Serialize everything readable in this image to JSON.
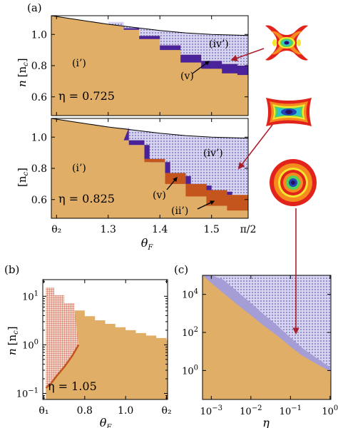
{
  "panel_labels": {
    "a": "(a)",
    "b": "(b)",
    "c": "(c)"
  },
  "colors": {
    "orange": "#E0AE67",
    "lavender_hatch": "#D6D4F1",
    "lavender_solid": "#A59DD5",
    "dark_purple": "#4A239A",
    "dark_orange": "#C4551D",
    "red_hatch": "#D2755F",
    "arrow": "#A9202C"
  },
  "chart_data": [
    {
      "id": "a-top",
      "type": "area",
      "ylabel": "n [n_c]",
      "ylabel_parts": {
        "var": "n",
        "unit": "[n",
        "unit_sub": "c",
        "close": "]"
      },
      "ytick_labels": [
        "0.6",
        "0.8",
        "1.0"
      ],
      "ytick_values": [
        0.6,
        0.8,
        1.0
      ],
      "ylim": [
        0.48,
        1.12
      ],
      "xlim": [
        1.19,
        1.5708
      ],
      "eta_label": "η = 0.725",
      "region_labels": [
        "(i’)",
        "(iv’)",
        "(v)"
      ],
      "upper_boundary": {
        "x": [
          1.19,
          1.25,
          1.3,
          1.35,
          1.4,
          1.45,
          1.5,
          1.55,
          1.5708
        ],
        "y": [
          1.12,
          1.09,
          1.065,
          1.045,
          1.025,
          1.01,
          1.0,
          0.995,
          0.993
        ]
      },
      "hatched_lower_boundary": {
        "x": [
          1.3,
          1.33,
          1.36,
          1.4,
          1.44,
          1.48,
          1.52,
          1.55,
          1.5708
        ],
        "y": [
          1.08,
          1.04,
          0.99,
          0.93,
          0.87,
          0.83,
          0.81,
          0.8,
          0.8
        ]
      },
      "purple_band_lower": {
        "x": [
          1.33,
          1.36,
          1.4,
          1.44,
          1.48,
          1.52,
          1.55,
          1.5708
        ],
        "y": [
          1.03,
          0.97,
          0.9,
          0.82,
          0.78,
          0.75,
          0.74,
          0.74
        ]
      }
    },
    {
      "id": "a-bottom",
      "type": "area",
      "ylabel": "n [n_c]",
      "ytick_labels": [
        "0.6",
        "0.8",
        "1.0"
      ],
      "ytick_values": [
        0.6,
        0.8,
        1.0
      ],
      "ylim": [
        0.48,
        1.12
      ],
      "xlim": [
        1.19,
        1.5708
      ],
      "xlabel": "θ_F",
      "xtick_labels": [
        "θ₂",
        "1.3",
        "1.4",
        "1.5",
        "π/2"
      ],
      "xtick_values": [
        1.2,
        1.3,
        1.4,
        1.5,
        1.5708
      ],
      "eta_label": "η = 0.825",
      "region_labels": [
        "(i’)",
        "(iv’)",
        "(v)",
        "(ii’)"
      ],
      "upper_boundary": {
        "x": [
          1.19,
          1.25,
          1.3,
          1.35,
          1.4,
          1.45,
          1.5,
          1.55,
          1.5708
        ],
        "y": [
          1.12,
          1.09,
          1.065,
          1.045,
          1.025,
          1.01,
          1.0,
          0.995,
          0.993
        ]
      },
      "hatched_lower_boundary": {
        "x": [
          1.3,
          1.34,
          1.38,
          1.42,
          1.46,
          1.5,
          1.54,
          1.5708
        ],
        "y": [
          1.06,
          0.95,
          0.84,
          0.75,
          0.69,
          0.65,
          0.63,
          0.63
        ]
      },
      "purple_band_lower": {
        "x": [
          1.33,
          1.37,
          1.41,
          1.45,
          1.49,
          1.53,
          1.5708
        ],
        "y": [
          0.98,
          0.86,
          0.77,
          0.7,
          0.66,
          0.63,
          0.62
        ]
      },
      "orange_band_lower": {
        "x": [
          1.37,
          1.41,
          1.45,
          1.49,
          1.53,
          1.5708
        ],
        "y": [
          0.84,
          0.7,
          0.62,
          0.56,
          0.53,
          0.52
        ]
      }
    },
    {
      "id": "b",
      "type": "area",
      "ylabel": "n [n_c]",
      "xlabel": "θ_F",
      "yscale": "log",
      "ytick_labels": [
        "10^-1",
        "10^0",
        "10^1"
      ],
      "ytick_display": [
        {
          "base": "10",
          "exp": "−1"
        },
        {
          "base": "10",
          "exp": "0"
        },
        {
          "base": "10",
          "exp": "1"
        }
      ],
      "ytick_values": [
        0.1,
        1,
        10
      ],
      "ylim": [
        0.075,
        22
      ],
      "xtick_labels": [
        "θ₁",
        "0.8",
        "1.0",
        "θ₂"
      ],
      "xtick_values": [
        0.6,
        0.8,
        1.0,
        1.2
      ],
      "xlim": [
        0.595,
        1.205
      ],
      "eta_label": "η = 1.05",
      "boundary": {
        "x": [
          0.61,
          0.65,
          0.7,
          0.75,
          0.8,
          0.85,
          0.9,
          0.95,
          1.0,
          1.05,
          1.1,
          1.15,
          1.2
        ],
        "y": [
          15,
          10.5,
          7.2,
          5.1,
          3.9,
          3.2,
          2.7,
          2.3,
          2.0,
          1.75,
          1.55,
          1.38,
          1.25
        ]
      },
      "red_lower_boundary": {
        "x": [
          0.61,
          0.63,
          0.66,
          0.7,
          0.74,
          0.77
        ],
        "y": [
          0.13,
          0.15,
          0.22,
          0.35,
          0.6,
          1.0
        ]
      }
    },
    {
      "id": "c",
      "type": "area",
      "xlabel": "η",
      "xscale": "log",
      "yscale": "log",
      "xtick_labels": [
        "10^-3",
        "10^-2",
        "10^-1",
        "10^0"
      ],
      "xtick_display": [
        {
          "base": "10",
          "exp": "−3"
        },
        {
          "base": "10",
          "exp": "−2"
        },
        {
          "base": "10",
          "exp": "−1"
        },
        {
          "base": "10",
          "exp": "0"
        }
      ],
      "xtick_values": [
        0.001,
        0.01,
        0.1,
        1
      ],
      "ytick_labels": [
        "10^0",
        "10^2",
        "10^4"
      ],
      "ytick_display": [
        {
          "base": "10",
          "exp": "0"
        },
        {
          "base": "10",
          "exp": "2"
        },
        {
          "base": "10",
          "exp": "4"
        }
      ],
      "ytick_values": [
        1,
        100,
        10000
      ],
      "xlim": [
        0.0006,
        1.05
      ],
      "ylim": [
        0.03,
        100000
      ],
      "orange_upper": {
        "x": [
          0.0006,
          0.001,
          0.002,
          0.005,
          0.01,
          0.02,
          0.05,
          0.1,
          0.2,
          0.5,
          1.0
        ],
        "y": [
          100000,
          40000,
          12000,
          2500,
          800,
          250,
          60,
          18,
          6,
          2,
          0.9
        ]
      },
      "lavender_upper": {
        "x": [
          0.0006,
          0.001,
          0.002,
          0.005,
          0.01,
          0.02,
          0.05,
          0.1,
          0.2,
          0.5,
          1.0
        ],
        "y": [
          100000,
          100000,
          60000,
          12000,
          3500,
          1000,
          200,
          55,
          15,
          4,
          1.5
        ]
      }
    }
  ],
  "insets": [
    {
      "name": "x-shaped-density-inset"
    },
    {
      "name": "rectangular-density-inset"
    },
    {
      "name": "ring-density-inset"
    }
  ]
}
